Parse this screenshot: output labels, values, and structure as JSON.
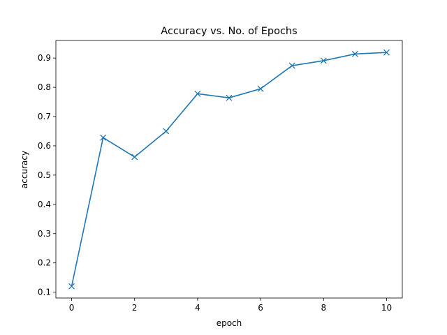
{
  "chart_data": {
    "type": "line",
    "title": "Accuracy vs. No. of Epochs",
    "xlabel": "epoch",
    "ylabel": "accuracy",
    "xlim": [
      -0.5,
      10.5
    ],
    "ylim": [
      0.08,
      0.96
    ],
    "xticks": [
      0,
      2,
      4,
      6,
      8,
      10
    ],
    "yticks": [
      0.1,
      0.2,
      0.3,
      0.4,
      0.5,
      0.6,
      0.7,
      0.8,
      0.9
    ],
    "grid": false,
    "series": [
      {
        "color": "#1f77b4",
        "marker": "x",
        "x": [
          0,
          1,
          2,
          3,
          4,
          5,
          6,
          7,
          8,
          9,
          10
        ],
        "y": [
          0.12,
          0.628,
          0.562,
          0.65,
          0.778,
          0.764,
          0.795,
          0.874,
          0.891,
          0.914,
          0.919
        ]
      }
    ]
  }
}
